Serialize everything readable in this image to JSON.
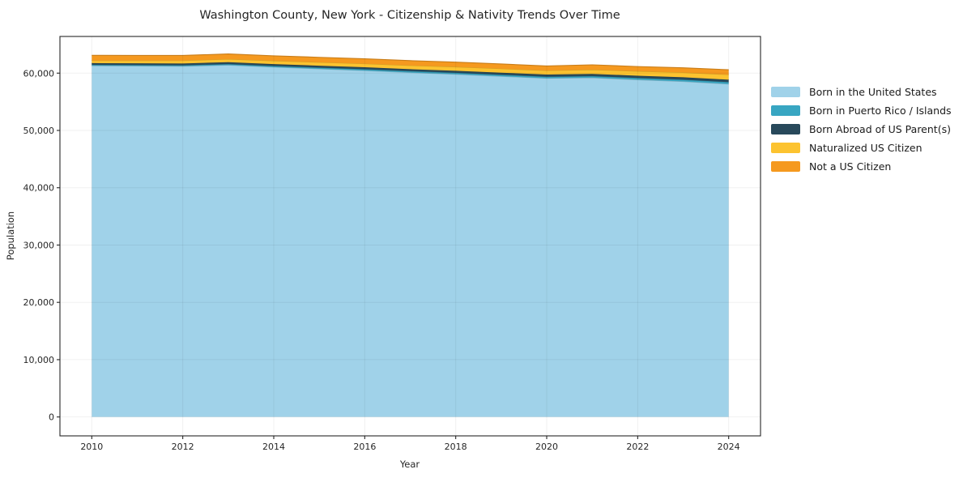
{
  "title": "Washington County, New York - Citizenship & Nativity Trends Over Time",
  "chart_data": {
    "type": "area",
    "stacked": true,
    "title": "Washington County, New York - Citizenship & Nativity Trends Over Time",
    "xlabel": "Year",
    "ylabel": "Population",
    "x": [
      2010,
      2011,
      2012,
      2013,
      2014,
      2015,
      2016,
      2017,
      2018,
      2019,
      2020,
      2021,
      2022,
      2023,
      2024
    ],
    "series": [
      {
        "name": "Born in the United States",
        "color": "#a0d2e9",
        "values": [
          61300,
          61250,
          61200,
          61400,
          61050,
          60750,
          60450,
          60100,
          59800,
          59450,
          59100,
          59200,
          58850,
          58550,
          58100
        ]
      },
      {
        "name": "Born in Puerto Rico / Islands",
        "color": "#38a6c2",
        "values": [
          150,
          160,
          170,
          180,
          190,
          210,
          230,
          240,
          250,
          260,
          270,
          280,
          300,
          310,
          330
        ]
      },
      {
        "name": "Born Abroad of US Parent(s)",
        "color": "#28495b",
        "values": [
          300,
          310,
          320,
          330,
          340,
          340,
          350,
          350,
          360,
          370,
          380,
          390,
          400,
          410,
          430
        ]
      },
      {
        "name": "Naturalized US Citizen",
        "color": "#fcc330",
        "values": [
          450,
          480,
          510,
          540,
          570,
          600,
          620,
          650,
          680,
          700,
          700,
          730,
          780,
          840,
          880
        ]
      },
      {
        "name": "Not a US Citizen",
        "color": "#f5991f",
        "values": [
          900,
          890,
          880,
          900,
          870,
          860,
          850,
          840,
          830,
          820,
          800,
          850,
          820,
          820,
          850
        ]
      }
    ],
    "xticks": [
      2010,
      2012,
      2014,
      2016,
      2018,
      2020,
      2022,
      2024
    ],
    "yticks": [
      0,
      10000,
      20000,
      30000,
      40000,
      50000,
      60000
    ],
    "xlim": [
      2009.3,
      2024.7
    ],
    "ylim": [
      -3300,
      66400
    ],
    "grid": true,
    "legend_position": "right",
    "frame_color": "#262626",
    "grid_opacity": 0.06
  }
}
